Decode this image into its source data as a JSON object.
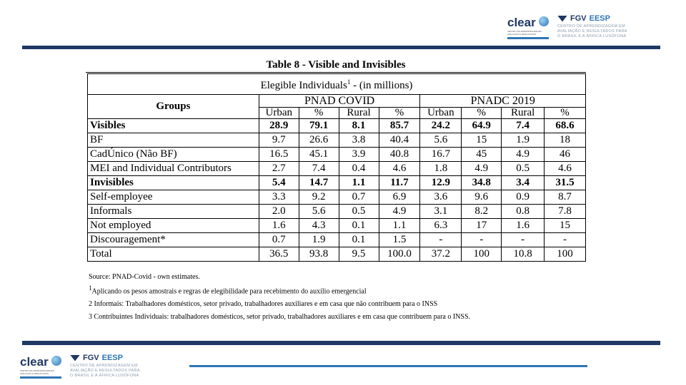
{
  "header": {
    "clear_logo": "clear",
    "clear_subtitle": "CENTRO DE APRENDIZAGEM EM AVALIAÇÃO E RESULTADOS",
    "fgv": "FGV",
    "eesp": "EESP",
    "fgv_tagline": "CENTRO DE APRENDIZAGEM EM AVALIAÇÃO E RESULTADOS PARA O BRASIL E A ÁFRICA LUSÓFONA",
    "colors": {
      "navy": "#1f3864",
      "blue": "#2e75b6"
    }
  },
  "table": {
    "title": "Table 8 - Visible and Invisibles",
    "subtitle": "Elegible Individuals",
    "subtitle_sup": "1",
    "subtitle_rest": " - (in millions)",
    "groups_label": "Groups",
    "survey_1": "PNAD COVID",
    "survey_2": "PNADC 2019",
    "subheaders": [
      "Urban",
      "%",
      "Rural",
      "%",
      "Urban",
      "%",
      "Rural",
      "%"
    ],
    "rows": [
      {
        "label": "Visibles",
        "bold": true,
        "values": [
          "28.9",
          "79.1",
          "8.1",
          "85.7",
          "24.2",
          "64.9",
          "7.4",
          "68.6"
        ]
      },
      {
        "label": "BF",
        "bold": false,
        "values": [
          "9.7",
          "26.6",
          "3.8",
          "40.4",
          "5.6",
          "15",
          "1.9",
          "18"
        ]
      },
      {
        "label": "CadÚnico (Não BF)",
        "bold": false,
        "values": [
          "16.5",
          "45.1",
          "3.9",
          "40.8",
          "16.7",
          "45",
          "4.9",
          "46"
        ]
      },
      {
        "label": "MEI and Individual Contributors",
        "bold": false,
        "values": [
          "2.7",
          "7.4",
          "0.4",
          "4.6",
          "1.8",
          "4.9",
          "0.5",
          "4.6"
        ]
      },
      {
        "label": "Invisibles",
        "bold": true,
        "values": [
          "5.4",
          "14.7",
          "1.1",
          "11.7",
          "12.9",
          "34.8",
          "3.4",
          "31.5"
        ]
      },
      {
        "label": "Self-employee",
        "bold": false,
        "values": [
          "3.3",
          "9.2",
          "0.7",
          "6.9",
          "3.6",
          "9.6",
          "0.9",
          "8.7"
        ]
      },
      {
        "label": "Informals",
        "bold": false,
        "values": [
          "2.0",
          "5.6",
          "0.5",
          "4.9",
          "3.1",
          "8.2",
          "0.8",
          "7.8"
        ]
      },
      {
        "label": "Not employed",
        "bold": false,
        "values": [
          "1.6",
          "4.3",
          "0.1",
          "1.1",
          "6.3",
          "17",
          "1.6",
          "15"
        ]
      },
      {
        "label": "Discouragement*",
        "bold": false,
        "values": [
          "0.7",
          "1.9",
          "0.1",
          "1.5",
          "-",
          "-",
          "-",
          "-"
        ]
      },
      {
        "label": "Total",
        "bold": false,
        "values": [
          "36.5",
          "93.8",
          "9.5",
          "100.0",
          "37.2",
          "100",
          "10.8",
          "100"
        ]
      }
    ]
  },
  "notes": {
    "source": "Source: PNAD-Covid - own estimates.",
    "note1_sup": "1",
    "note1": "Aplicando os pesos amostrais e regras de elegibilidade para recebimento do auxílio emergencial",
    "note2": "2 Informais: Trabalhadores domésticos, setor privado, trabalhadores auxiliares e em casa que não contribuem para o INSS",
    "note3": "3 Contribuintes Individuais: trabalhadores domésticos, setor privado, trabalhadores auxiliares e em casa que contribuem para o INSS."
  }
}
